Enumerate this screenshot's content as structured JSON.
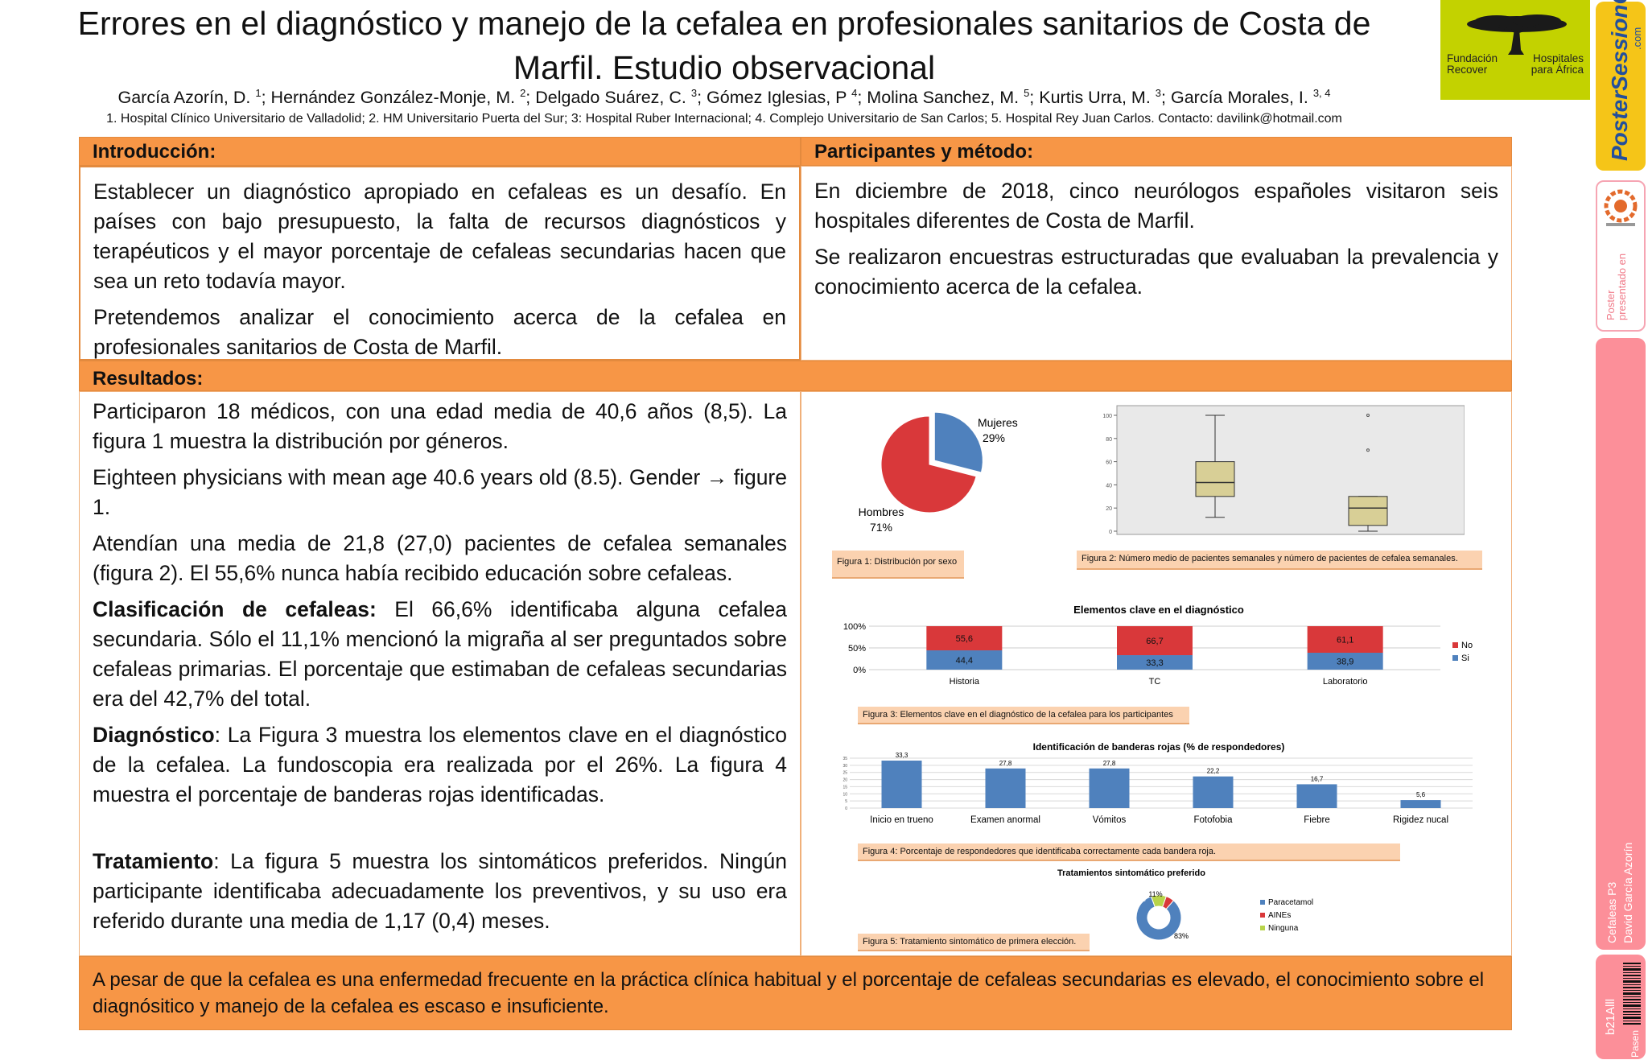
{
  "header": {
    "title_line1": "Errores en el diagnóstico y manejo de la cefalea en profesionales sanitarios de Costa de",
    "title_line2": "Marfil. Estudio observacional",
    "authors": [
      {
        "name": "García Azorín, D.",
        "sup": "1"
      },
      {
        "name": "Hernández González-Monje, M.",
        "sup": "2"
      },
      {
        "name": "Delgado Suárez, C.",
        "sup": "3"
      },
      {
        "name": "Gómez Iglesias, P",
        "sup": "4"
      },
      {
        "name": "Molina Sanchez, M.",
        "sup": "5"
      },
      {
        "name": "Kurtis Urra, M.",
        "sup": "3"
      },
      {
        "name": "García Morales, I.",
        "sup": "3, 4"
      }
    ],
    "affiliations": "1. Hospital Clínico Universitario de Valladolid; 2. HM Universitario Puerta del Sur; 3: Hospital Ruber Internacional; 4. Complejo Universitario de San Carlos; 5. Hospital Rey Juan Carlos. Contacto: davilink@hotmail.com"
  },
  "logo": {
    "left_text_1": "Fundación",
    "left_text_2": "Recover",
    "right_text_1": "Hospitales",
    "right_text_2": "para África",
    "icon": "acacia-tree-icon",
    "color": "#c3d200"
  },
  "side_strip": {
    "brand": "PosterSessionOnline",
    "brand_small": ".com",
    "presented": "Poster presentado en",
    "session": "Cefaleas P3",
    "author": "David García Azorín",
    "code": "b21Alll",
    "flag": "Pasen"
  },
  "sections": {
    "intro": {
      "heading": "Introducción:",
      "p1": "Establecer un diagnóstico apropiado en cefaleas es un desafío. En países con bajo presupuesto, la falta de recursos diagnósticos y terapéuticos y el mayor porcentaje de cefaleas secundarias hacen que sea un reto todavía mayor.",
      "p2": "Pretendemos analizar el conocimiento acerca de la cefalea en profesionales sanitarios de Costa de Marfil."
    },
    "methods": {
      "heading": "Participantes y método:",
      "p1": "En diciembre de 2018, cinco neurólogos españoles visitaron seis hospitales diferentes de Costa de Marfil.",
      "p2": "Se realizaron encuestras estructuradas que evaluaban la prevalencia y conocimiento acerca de la cefalea."
    },
    "results": {
      "heading": "Resultados:",
      "p1": "Participaron 18 médicos, con una edad media de 40,6 años (8,5). La figura 1 muestra la distribución por géneros.",
      "p2": "Eighteen physicians with mean age 40.6 years old (8.5). Gender → figure 1.",
      "p3": "Atendían una media de 21,8 (27,0) pacientes de cefalea semanales (figura 2). El 55,6% nunca había recibido educación sobre cefaleas.",
      "p4_bold": "Clasificación de cefaleas:",
      "p4": " El 66,6% identificaba alguna cefalea secundaria. Sólo el 11,1% mencionó la migraña al ser preguntados sobre cefaleas primarias. El porcentaje que estimaban de cefaleas secundarias era del 42,7% del total.",
      "p5_bold": "Diagnóstico",
      "p5": ": La Figura 3 muestra los elementos clave en el diagnóstico de la cefalea. La fundoscopia era realizada por el 26%. La figura 4 muestra el porcentaje de banderas rojas identificadas.",
      "p6_bold": "Tratamiento",
      "p6": ": La figura 5 muestra los sintomáticos preferidos. Ningún participante identificaba adecuadamente los preventivos, y su uso era referido durante una media de 1,17 (0,4) meses."
    },
    "conclusion": "A pesar de que la cefalea es una enfermedad frecuente en la práctica clínica habitual y el porcentaje de cefaleas secundarias es elevado, el conocimiento sobre el diagnósitico y manejo de la cefalea es escaso e insuficiente."
  },
  "captions": {
    "fig1": "Figura 1: Distribución por sexo",
    "fig2": "Figura 2: Número medio de pacientes semanales y número de pacientes de cefalea semanales.",
    "fig3": "Figura 3: Elementos clave en el diagnóstico de la cefalea para los participantes",
    "fig4": "Figura 4: Porcentaje de respondedores que identificaba correctamente cada bandera roja.",
    "fig5": "Figura 5: Tratamiento sintomático de primera elección."
  },
  "chart_data": [
    {
      "type": "pie",
      "id": "fig1",
      "title": "",
      "labels": [
        "Mujeres",
        "Hombres"
      ],
      "values": [
        29,
        71
      ],
      "value_labels": [
        "29%",
        "71%"
      ],
      "colors": [
        "#4f81bd",
        "#d9383a"
      ]
    },
    {
      "type": "box",
      "id": "fig2",
      "title": "",
      "ylim": [
        0,
        100
      ],
      "yticks": [
        0,
        20,
        40,
        60,
        80,
        100
      ],
      "series": [
        {
          "q1": 30,
          "median": 42,
          "q3": 60,
          "whisker_low": 12,
          "whisker_high": 100,
          "outliers": [],
          "color": "#d8cf96"
        },
        {
          "q1": 5,
          "median": 20,
          "q3": 30,
          "whisker_low": 0,
          "whisker_high": 30,
          "outliers": [
            70,
            100
          ],
          "color": "#d8cf96"
        }
      ]
    },
    {
      "type": "bar",
      "id": "fig3",
      "stacked": true,
      "title": "Elementos clave en el diagnóstico",
      "categories": [
        "Historia",
        "TC",
        "Laboratorio"
      ],
      "yticks": [
        "0%",
        "50%",
        "100%"
      ],
      "legend_position": "right",
      "series": [
        {
          "name": "Si",
          "values": [
            44.4,
            33.3,
            38.9
          ],
          "labels": [
            "44,4",
            "33,3",
            "38,9"
          ],
          "color": "#4f81bd"
        },
        {
          "name": "No",
          "values": [
            55.6,
            66.7,
            61.1
          ],
          "labels": [
            "55,6",
            "66,7",
            "61,1"
          ],
          "color": "#d9383a"
        }
      ]
    },
    {
      "type": "bar",
      "id": "fig4",
      "title": "Identificación de banderas rojas (% de respondedores)",
      "categories": [
        "Inicio en trueno",
        "Examen anormal",
        "Vómitos",
        "Fotofobia",
        "Fiebre",
        "Rigidez nucal"
      ],
      "values": [
        33.3,
        27.8,
        27.8,
        22.2,
        16.7,
        5.6
      ],
      "value_labels": [
        "33,3",
        "27,8",
        "27,8",
        "22,2",
        "16,7",
        "5,6"
      ],
      "ylim": [
        0,
        35
      ],
      "yticks": [
        0,
        5,
        10,
        15,
        20,
        25,
        30,
        35
      ],
      "color": "#4f81bd"
    },
    {
      "type": "pie",
      "id": "fig5",
      "donut": true,
      "title": "Tratamientos sintomático preferido",
      "labels": [
        "Paracetamol",
        "AINEs",
        "Ninguna"
      ],
      "values": [
        83,
        6,
        11
      ],
      "value_labels": [
        "83%",
        "6%",
        "11%"
      ],
      "colors": [
        "#4f81bd",
        "#d9383a",
        "#b8d44a"
      ],
      "legend_position": "right"
    }
  ]
}
